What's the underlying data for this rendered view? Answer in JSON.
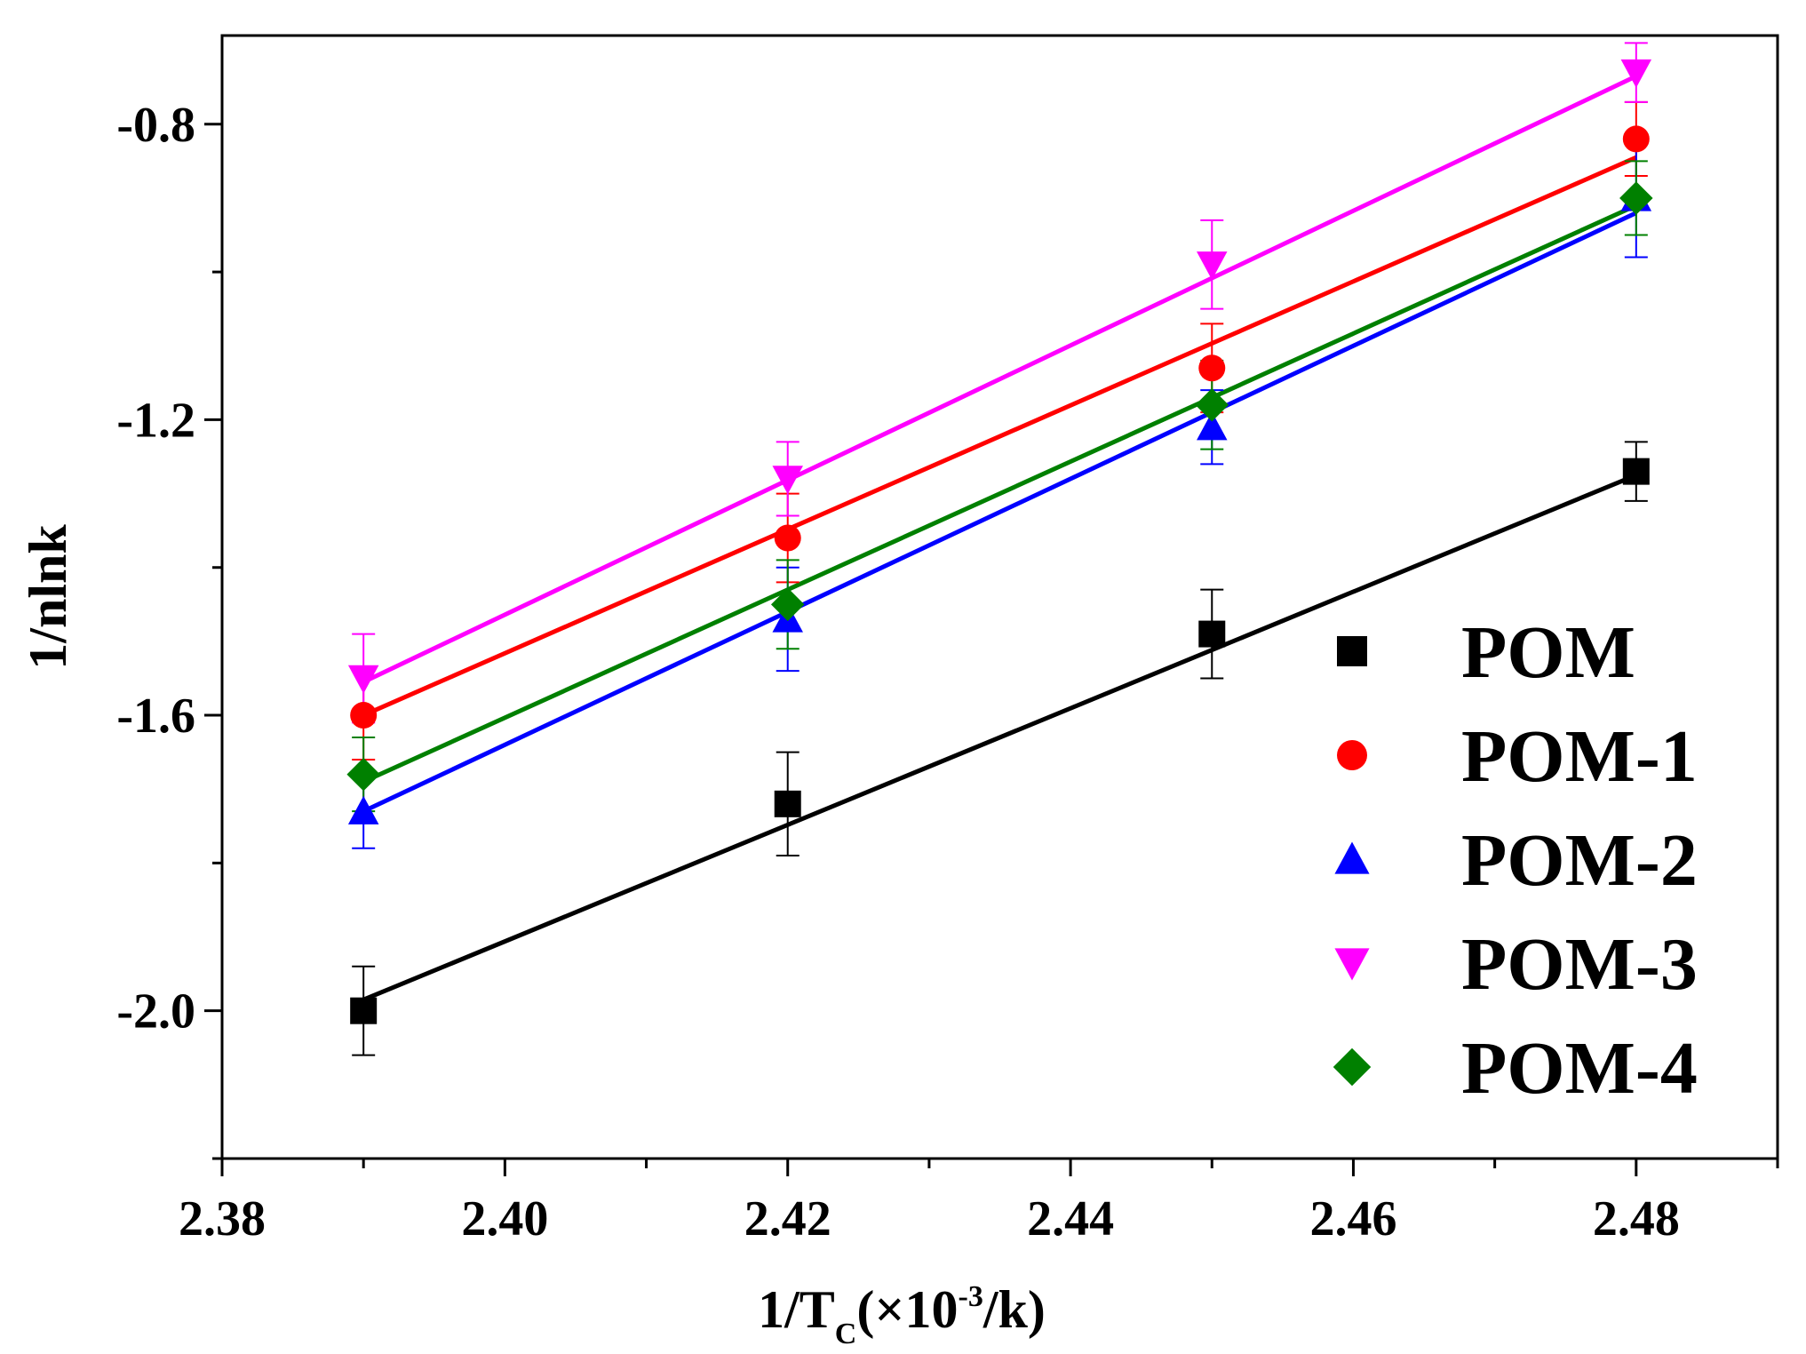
{
  "chart_data": {
    "type": "scatter",
    "xlabel": "1/T",
    "xlabel_sub": "C",
    "xlabel_units_prefix": "(×10",
    "xlabel_units_exp": "-3",
    "xlabel_units_suffix": "/k)",
    "ylabel": "1/nlnk",
    "xlim": [
      2.38,
      2.49
    ],
    "ylim": [
      -2.2,
      -0.68
    ],
    "xticks": [
      2.38,
      2.4,
      2.42,
      2.44,
      2.46,
      2.48
    ],
    "xtick_labels": [
      "2.38",
      "2.40",
      "2.42",
      "2.44",
      "2.46",
      "2.48"
    ],
    "yticks": [
      -2.0,
      -1.6,
      -1.2,
      -0.8
    ],
    "ytick_labels": [
      "-2.0",
      "-1.6",
      "-1.2",
      "-0.8"
    ],
    "legend_position": "bottom-right",
    "x": [
      2.39,
      2.42,
      2.45,
      2.48
    ],
    "series": [
      {
        "name": "POM",
        "color": "#000000",
        "marker": "square",
        "values": [
          -2.0,
          -1.72,
          -1.49,
          -1.27
        ],
        "errors": [
          0.06,
          0.07,
          0.06,
          0.04
        ],
        "fit": [
          [
            2.39,
            -1.985
          ],
          [
            2.48,
            -1.275
          ]
        ]
      },
      {
        "name": "POM-1",
        "color": "#ff0000",
        "marker": "circle",
        "values": [
          -1.6,
          -1.36,
          -1.13,
          -0.82
        ],
        "errors": [
          0.06,
          0.06,
          0.06,
          0.05
        ],
        "fit": [
          [
            2.39,
            -1.6
          ],
          [
            2.48,
            -0.845
          ]
        ]
      },
      {
        "name": "POM-2",
        "color": "#0000ff",
        "marker": "triangle-up",
        "values": [
          -1.73,
          -1.47,
          -1.21,
          -0.9
        ],
        "errors": [
          0.05,
          0.07,
          0.05,
          0.08
        ],
        "fit": [
          [
            2.39,
            -1.73
          ],
          [
            2.48,
            -0.92
          ]
        ]
      },
      {
        "name": "POM-3",
        "color": "#ff00ff",
        "marker": "triangle-down",
        "values": [
          -1.55,
          -1.28,
          -0.99,
          -0.73
        ],
        "errors": [
          0.06,
          0.05,
          0.06,
          0.04
        ],
        "fit": [
          [
            2.39,
            -1.555
          ],
          [
            2.48,
            -0.735
          ]
        ]
      },
      {
        "name": "POM-4",
        "color": "#008000",
        "marker": "diamond",
        "values": [
          -1.68,
          -1.45,
          -1.18,
          -0.9
        ],
        "errors": [
          0.05,
          0.06,
          0.06,
          0.05
        ],
        "fit": [
          [
            2.39,
            -1.69
          ],
          [
            2.48,
            -0.91
          ]
        ]
      }
    ]
  }
}
